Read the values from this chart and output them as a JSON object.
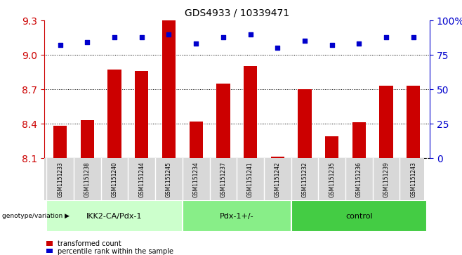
{
  "title": "GDS4933 / 10339471",
  "samples": [
    "GSM1151233",
    "GSM1151238",
    "GSM1151240",
    "GSM1151244",
    "GSM1151245",
    "GSM1151234",
    "GSM1151237",
    "GSM1151241",
    "GSM1151242",
    "GSM1151232",
    "GSM1151235",
    "GSM1151236",
    "GSM1151239",
    "GSM1151243"
  ],
  "bar_values": [
    8.38,
    8.43,
    8.87,
    8.86,
    9.33,
    8.42,
    8.75,
    8.9,
    8.11,
    8.7,
    8.29,
    8.41,
    8.73,
    8.73
  ],
  "dot_values": [
    82,
    84,
    88,
    88,
    90,
    83,
    88,
    90,
    80,
    85,
    82,
    83,
    88,
    88
  ],
  "ylim_left": [
    8.1,
    9.3
  ],
  "ylim_right": [
    0,
    100
  ],
  "yticks_left": [
    8.1,
    8.4,
    8.7,
    9.0,
    9.3
  ],
  "yticks_right": [
    0,
    25,
    50,
    75,
    100
  ],
  "groups": [
    {
      "label": "IKK2-CA/Pdx-1",
      "start": 0,
      "end": 5,
      "color": "#ccffcc"
    },
    {
      "label": "Pdx-1+/-",
      "start": 5,
      "end": 9,
      "color": "#88ee88"
    },
    {
      "label": "control",
      "start": 9,
      "end": 14,
      "color": "#44cc44"
    }
  ],
  "bar_color": "#cc0000",
  "dot_color": "#0000cc",
  "bar_width": 0.5,
  "left_tick_color": "#cc0000",
  "right_tick_color": "#0000cc",
  "sample_box_color": "#d8d8d8",
  "legend_bar_label": "transformed count",
  "legend_dot_label": "percentile rank within the sample",
  "genotype_label": "genotype/variation"
}
